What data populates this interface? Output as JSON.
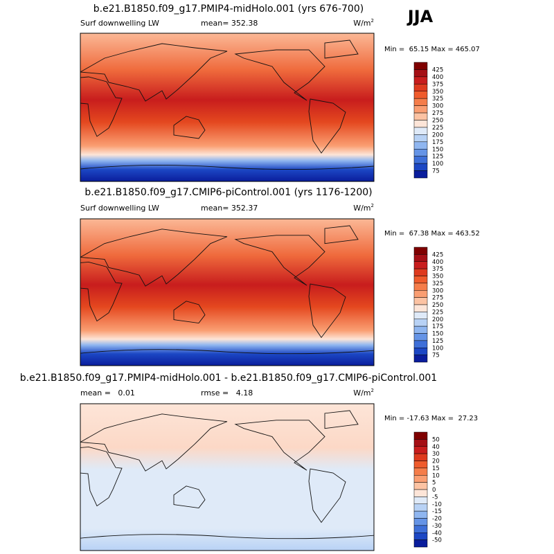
{
  "season": "JJA",
  "panels": [
    {
      "title": "b.e21.B1850.f09_g17.PMIP4-midHolo.001 (yrs 676-700)",
      "left_text": "Surf downwelling LW",
      "center_text": "mean= 352.38",
      "units": "W/m",
      "units_sup": "2",
      "minmax": "Min =  65.15 Max = 465.07",
      "colorbar": {
        "labels": [
          425,
          400,
          375,
          350,
          325,
          300,
          275,
          250,
          225,
          200,
          175,
          150,
          125,
          100,
          75
        ],
        "colors": [
          "#7f0000",
          "#a50f15",
          "#c81d1d",
          "#de3a1e",
          "#ef5b2c",
          "#f57d4a",
          "#fa9e72",
          "#fcc3a3",
          "#fde5d8",
          "#dfeaf8",
          "#b8d2f5",
          "#8fb6f0",
          "#6594e6",
          "#3e6fd8",
          "#1c47c4",
          "#0a1d9c"
        ]
      }
    },
    {
      "title": "b.e21.B1850.f09_g17.CMIP6-piControl.001 (yrs 1176-1200)",
      "left_text": "Surf downwelling LW",
      "center_text": "mean= 352.37",
      "units": "W/m",
      "units_sup": "2",
      "minmax": "Min =  67.38 Max = 463.52",
      "colorbar": {
        "labels": [
          425,
          400,
          375,
          350,
          325,
          300,
          275,
          250,
          225,
          200,
          175,
          150,
          125,
          100,
          75
        ],
        "colors": [
          "#7f0000",
          "#a50f15",
          "#c81d1d",
          "#de3a1e",
          "#ef5b2c",
          "#f57d4a",
          "#fa9e72",
          "#fcc3a3",
          "#fde5d8",
          "#dfeaf8",
          "#b8d2f5",
          "#8fb6f0",
          "#6594e6",
          "#3e6fd8",
          "#1c47c4",
          "#0a1d9c"
        ]
      }
    },
    {
      "title": "b.e21.B1850.f09_g17.PMIP4-midHolo.001 - b.e21.B1850.f09_g17.CMIP6-piControl.001",
      "left_text": "mean =   0.01",
      "center_text": "rmse =   4.18",
      "units": "W/m",
      "units_sup": "2",
      "minmax": "Min = -17.63 Max =  27.23",
      "colorbar": {
        "labels": [
          50,
          40,
          30,
          20,
          15,
          10,
          5,
          0,
          -5,
          -10,
          -15,
          -20,
          -30,
          -40,
          -50
        ],
        "colors": [
          "#7f0000",
          "#a50f15",
          "#c81d1d",
          "#de3a1e",
          "#ef5b2c",
          "#f57d4a",
          "#fa9e72",
          "#fcc3a3",
          "#fde5d8",
          "#dfeaf8",
          "#b8d2f5",
          "#8fb6f0",
          "#6594e6",
          "#3e6fd8",
          "#1c47c4",
          "#0a1d9c"
        ]
      }
    }
  ]
}
